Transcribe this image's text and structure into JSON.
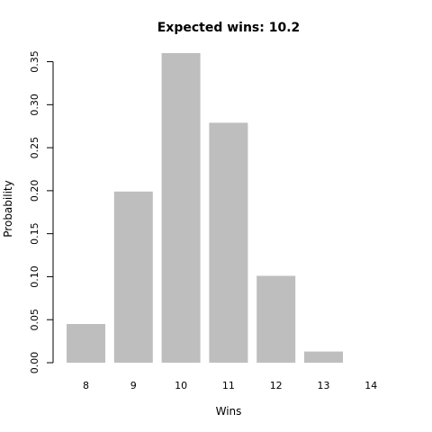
{
  "chart_data": {
    "type": "bar",
    "title": "Expected wins:  10.2",
    "xlabel": "Wins",
    "ylabel": "Probability",
    "categories": [
      "8",
      "9",
      "10",
      "11",
      "12",
      "13",
      "14"
    ],
    "values": [
      0.045,
      0.199,
      0.36,
      0.279,
      0.101,
      0.013,
      0.0
    ],
    "ylim": [
      0,
      0.36
    ],
    "yticks": [
      "0.00",
      "0.05",
      "0.10",
      "0.15",
      "0.20",
      "0.25",
      "0.30",
      "0.35"
    ],
    "ytick_values": [
      0,
      0.05,
      0.1,
      0.15,
      0.2,
      0.25,
      0.3,
      0.35
    ],
    "bar_color": "#bebebe",
    "grid": false,
    "legend": "none"
  }
}
